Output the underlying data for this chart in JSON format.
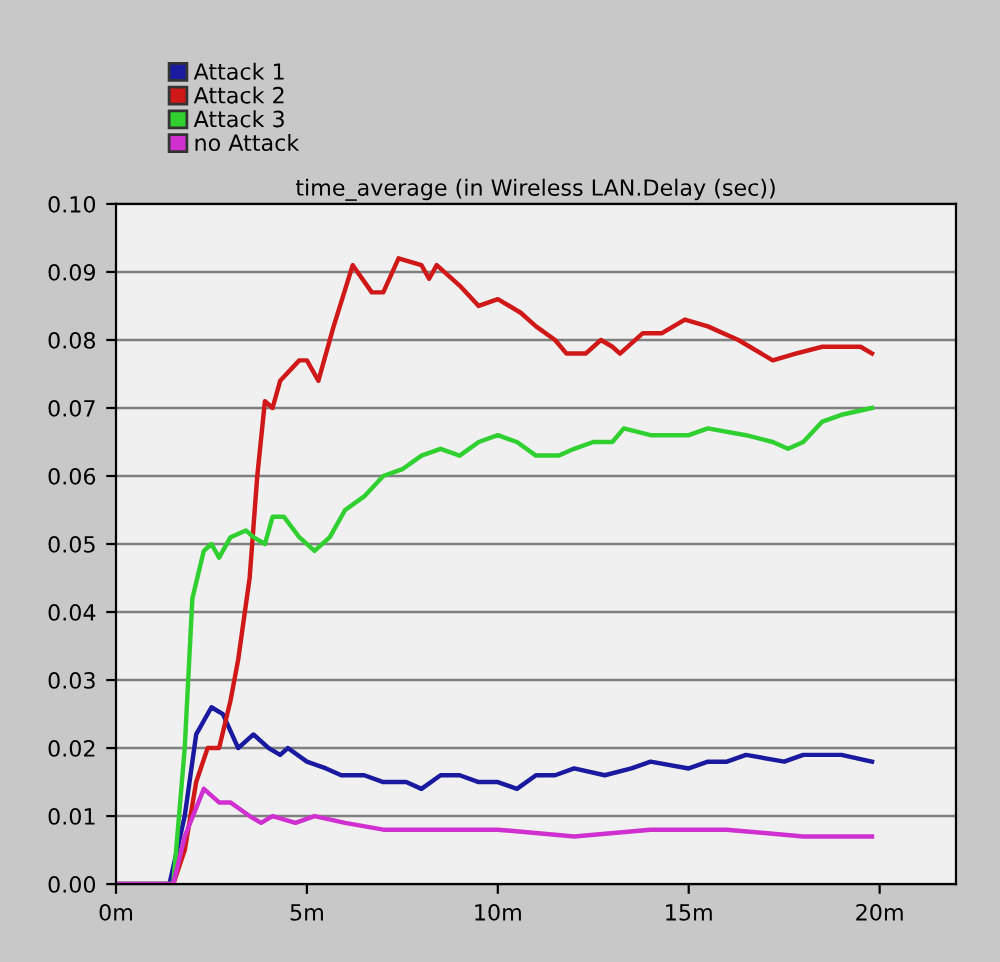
{
  "chart_data": {
    "type": "line",
    "title": "time_average (in Wireless LAN.Delay (sec))",
    "xlim": [
      0,
      22
    ],
    "xticks": [
      {
        "value": 0,
        "label": "0m"
      },
      {
        "value": 5,
        "label": "5m"
      },
      {
        "value": 10,
        "label": "10m"
      },
      {
        "value": 15,
        "label": "15m"
      },
      {
        "value": 20,
        "label": "20m"
      }
    ],
    "ylim": [
      0,
      0.1
    ],
    "yticks": [
      {
        "value": 0,
        "label": "0.00"
      },
      {
        "value": 0.01,
        "label": "0.01"
      },
      {
        "value": 0.02,
        "label": "0.02"
      },
      {
        "value": 0.03,
        "label": "0.03"
      },
      {
        "value": 0.04,
        "label": "0.04"
      },
      {
        "value": 0.05,
        "label": "0.05"
      },
      {
        "value": 0.06,
        "label": "0.06"
      },
      {
        "value": 0.07,
        "label": "0.07"
      },
      {
        "value": 0.08,
        "label": "0.08"
      },
      {
        "value": 0.09,
        "label": "0.09"
      },
      {
        "value": 0.1,
        "label": "0.10"
      }
    ],
    "grid": "y",
    "legend": "top left",
    "marker": "none",
    "line_style": "solid",
    "series": [
      {
        "name": "Attack 1",
        "color": "#1a1aa0",
        "x": [
          0,
          1.4,
          1.8,
          2.1,
          2.5,
          2.8,
          3.2,
          3.6,
          4.0,
          4.3,
          4.5,
          5.0,
          5.5,
          5.9,
          6.5,
          7.0,
          7.6,
          8.0,
          8.5,
          9.0,
          9.5,
          10.0,
          10.5,
          11.0,
          11.5,
          12.0,
          12.8,
          13.5,
          14.0,
          15.0,
          15.5,
          16.0,
          16.5,
          17.5,
          18.0,
          19.0,
          19.8
        ],
        "values": [
          0,
          0,
          0.01,
          0.022,
          0.026,
          0.025,
          0.02,
          0.022,
          0.02,
          0.019,
          0.02,
          0.018,
          0.017,
          0.016,
          0.016,
          0.015,
          0.015,
          0.014,
          0.016,
          0.016,
          0.015,
          0.015,
          0.014,
          0.016,
          0.016,
          0.017,
          0.016,
          0.017,
          0.018,
          0.017,
          0.018,
          0.018,
          0.019,
          0.018,
          0.019,
          0.019,
          0.018
        ]
      },
      {
        "name": "Attack 2",
        "color": "#d01818",
        "x": [
          0,
          1.5,
          1.8,
          2.1,
          2.4,
          2.7,
          3.0,
          3.2,
          3.5,
          3.7,
          3.9,
          4.1,
          4.3,
          4.8,
          5.0,
          5.3,
          5.7,
          6.2,
          6.7,
          7.0,
          7.4,
          8.0,
          8.2,
          8.4,
          9.0,
          9.5,
          10.0,
          10.6,
          11.0,
          11.5,
          11.8,
          12.3,
          12.7,
          13.0,
          13.2,
          13.8,
          14.3,
          14.9,
          15.5,
          16.3,
          17.2,
          17.8,
          18.5,
          19.0,
          19.5,
          19.8
        ],
        "values": [
          0,
          0,
          0.005,
          0.015,
          0.02,
          0.02,
          0.027,
          0.033,
          0.045,
          0.06,
          0.071,
          0.07,
          0.074,
          0.077,
          0.077,
          0.074,
          0.082,
          0.091,
          0.087,
          0.087,
          0.092,
          0.091,
          0.089,
          0.091,
          0.088,
          0.085,
          0.086,
          0.084,
          0.082,
          0.08,
          0.078,
          0.078,
          0.08,
          0.079,
          0.078,
          0.081,
          0.081,
          0.083,
          0.082,
          0.08,
          0.077,
          0.078,
          0.079,
          0.079,
          0.079,
          0.078
        ]
      },
      {
        "name": "Attack 3",
        "color": "#30d030",
        "x": [
          0,
          1.5,
          1.8,
          2.0,
          2.3,
          2.5,
          2.7,
          3.0,
          3.4,
          3.6,
          3.9,
          4.1,
          4.4,
          4.8,
          5.2,
          5.6,
          6.0,
          6.5,
          7.0,
          7.5,
          8.0,
          8.5,
          9.0,
          9.5,
          10.0,
          10.5,
          11.0,
          11.6,
          12.0,
          12.5,
          13.0,
          13.3,
          14.0,
          15.0,
          15.5,
          16.5,
          17.2,
          17.6,
          18.0,
          18.5,
          19.0,
          19.8
        ],
        "values": [
          0,
          0,
          0.02,
          0.042,
          0.049,
          0.05,
          0.048,
          0.051,
          0.052,
          0.051,
          0.05,
          0.054,
          0.054,
          0.051,
          0.049,
          0.051,
          0.055,
          0.057,
          0.06,
          0.061,
          0.063,
          0.064,
          0.063,
          0.065,
          0.066,
          0.065,
          0.063,
          0.063,
          0.064,
          0.065,
          0.065,
          0.067,
          0.066,
          0.066,
          0.067,
          0.066,
          0.065,
          0.064,
          0.065,
          0.068,
          0.069,
          0.07
        ]
      },
      {
        "name": "no Attack",
        "color": "#d030d0",
        "x": [
          0,
          1.5,
          1.8,
          2.3,
          2.7,
          3.0,
          3.5,
          3.8,
          4.1,
          4.7,
          5.2,
          6.0,
          7.0,
          8.0,
          9.0,
          10.0,
          12.0,
          14.0,
          16.0,
          18.0,
          19.8
        ],
        "values": [
          0,
          0,
          0.007,
          0.014,
          0.012,
          0.012,
          0.01,
          0.009,
          0.01,
          0.009,
          0.01,
          0.009,
          0.008,
          0.008,
          0.008,
          0.008,
          0.007,
          0.008,
          0.008,
          0.007,
          0.007
        ]
      }
    ]
  }
}
